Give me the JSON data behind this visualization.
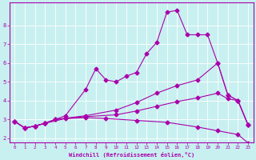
{
  "bg_color": "#c8f0f0",
  "grid_color": "#aadddd",
  "line_color": "#aa00aa",
  "marker": "D",
  "markersize": 2.5,
  "linewidth": 0.8,
  "xlabel": "Windchill (Refroidissement éolien,°C)",
  "xlabel_color": "#aa00aa",
  "xtick_color": "#aa00aa",
  "ytick_color": "#aa00aa",
  "xlim": [
    -0.5,
    23.5
  ],
  "ylim": [
    1.8,
    9.2
  ],
  "yticks": [
    2,
    3,
    4,
    5,
    6,
    7,
    8
  ],
  "xticks": [
    0,
    1,
    2,
    3,
    4,
    5,
    6,
    7,
    8,
    9,
    10,
    11,
    12,
    13,
    14,
    15,
    16,
    17,
    18,
    19,
    20,
    21,
    22,
    23
  ],
  "lines": [
    {
      "x": [
        0,
        1,
        2,
        3,
        5,
        7,
        9,
        12,
        15,
        18,
        20,
        22,
        23
      ],
      "y": [
        2.9,
        2.55,
        2.65,
        2.8,
        3.05,
        3.1,
        3.05,
        2.95,
        2.85,
        2.6,
        2.4,
        2.2,
        1.75
      ]
    },
    {
      "x": [
        0,
        1,
        2,
        3,
        4,
        5,
        7,
        8,
        9,
        10,
        11,
        12,
        13,
        14,
        15,
        16,
        17,
        18,
        19,
        20,
        21,
        22,
        23
      ],
      "y": [
        2.9,
        2.55,
        2.65,
        2.8,
        3.0,
        3.2,
        4.6,
        5.7,
        5.1,
        5.0,
        5.3,
        5.5,
        6.5,
        7.1,
        8.7,
        8.8,
        7.5,
        7.5,
        7.5,
        6.0,
        4.3,
        4.0,
        2.7
      ]
    },
    {
      "x": [
        0,
        1,
        2,
        3,
        4,
        7,
        10,
        12,
        14,
        16,
        18,
        20,
        21,
        22,
        23
      ],
      "y": [
        2.9,
        2.55,
        2.65,
        2.8,
        3.0,
        3.2,
        3.5,
        3.9,
        4.4,
        4.8,
        5.1,
        6.0,
        4.3,
        4.0,
        2.7
      ]
    },
    {
      "x": [
        0,
        1,
        2,
        3,
        4,
        7,
        10,
        12,
        14,
        16,
        18,
        20,
        21,
        22,
        23
      ],
      "y": [
        2.9,
        2.55,
        2.65,
        2.8,
        3.0,
        3.15,
        3.25,
        3.45,
        3.7,
        3.95,
        4.15,
        4.4,
        4.1,
        4.0,
        2.7
      ]
    }
  ]
}
